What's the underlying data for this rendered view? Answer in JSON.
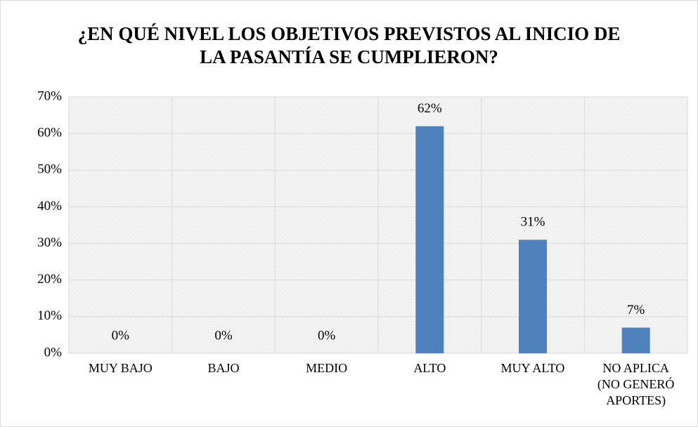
{
  "chart_data": {
    "type": "bar",
    "title": "¿EN QUÉ NIVEL LOS OBJETIVOS PREVISTOS AL INICIO DE LA PASANTÍA SE CUMPLIERON?",
    "categories": [
      "MUY BAJO",
      "BAJO",
      "MEDIO",
      "ALTO",
      "MUY ALTO",
      "NO APLICA (NO GENERÓ APORTES)"
    ],
    "values": [
      0,
      0,
      0,
      62,
      31,
      7
    ],
    "value_labels": [
      "0%",
      "0%",
      "0%",
      "62%",
      "31%",
      "7%"
    ],
    "color": "#4f81bd",
    "ylim": [
      0,
      70
    ],
    "yticks": [
      {
        "value": 0,
        "label": "0%"
      },
      {
        "value": 10,
        "label": "10%"
      },
      {
        "value": 20,
        "label": "20%"
      },
      {
        "value": 30,
        "label": "30%"
      },
      {
        "value": 40,
        "label": "40%"
      },
      {
        "value": 50,
        "label": "50%"
      },
      {
        "value": 60,
        "label": "60%"
      },
      {
        "value": 70,
        "label": "70%"
      }
    ],
    "grid": true
  }
}
